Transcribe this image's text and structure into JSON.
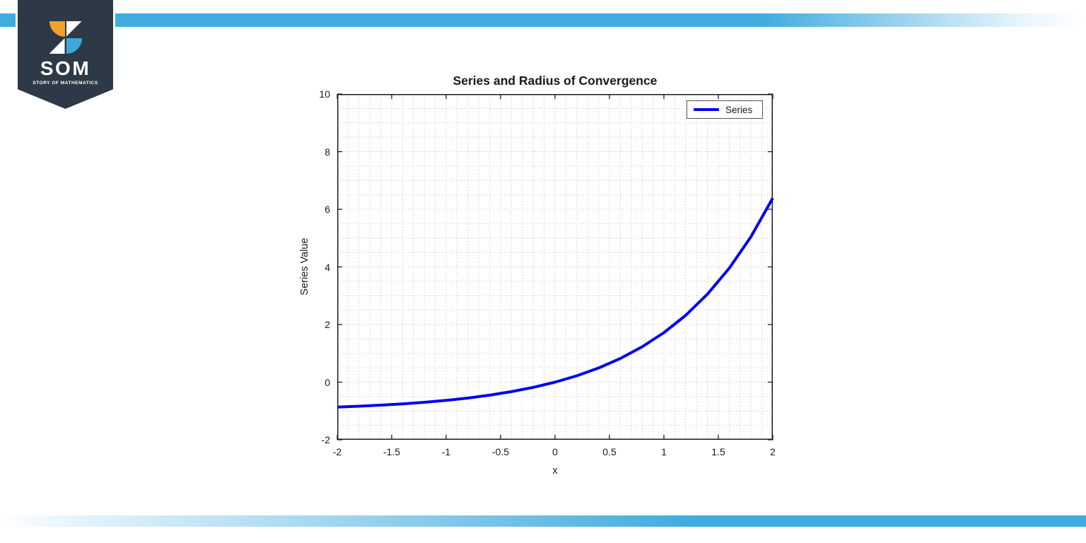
{
  "branding": {
    "logo_text": "SOM",
    "logo_tagline": "STORY OF MATHEMATICS",
    "banner_color": "#2d3946",
    "accent_bar_color": "#3fabdf",
    "icon_orange": "#f2a227",
    "icon_blue": "#3ea8dc"
  },
  "chart_data": {
    "type": "line",
    "title": "Series and Radius of Convergence",
    "xlabel": "x",
    "ylabel": "Series Value",
    "xlim": [
      -2,
      2
    ],
    "ylim": [
      -2,
      10
    ],
    "x_ticks": [
      -2,
      -1.5,
      -1,
      -0.5,
      0,
      0.5,
      1,
      1.5,
      2
    ],
    "y_ticks": [
      -2,
      0,
      2,
      4,
      6,
      8,
      10
    ],
    "x_tick_labels": [
      "-2",
      "-1.5",
      "-1",
      "-0.5",
      "0",
      "0.5",
      "1",
      "1.5",
      "2"
    ],
    "y_tick_labels": [
      "-2",
      "0",
      "2",
      "4",
      "6",
      "8",
      "10"
    ],
    "grid": "minor-dotted",
    "grid_color": "#bdbdbd",
    "minor_step_x": 0.1,
    "minor_step_y": 0.5,
    "axis_color": "#1a1a1a",
    "legend": {
      "position": "top-right",
      "entries": [
        {
          "label": "Series",
          "color": "#0000ee"
        }
      ]
    },
    "series": [
      {
        "name": "Series",
        "color": "#0000ee",
        "line_width": 4,
        "x": [
          -2,
          -1.8,
          -1.6,
          -1.4,
          -1.2,
          -1.0,
          -0.8,
          -0.6,
          -0.4,
          -0.2,
          0,
          0.2,
          0.4,
          0.6,
          0.8,
          1.0,
          1.2,
          1.4,
          1.6,
          1.8,
          2.0
        ],
        "y": [
          -0.865,
          -0.835,
          -0.798,
          -0.753,
          -0.699,
          -0.632,
          -0.551,
          -0.451,
          -0.33,
          -0.181,
          0,
          0.221,
          0.492,
          0.822,
          1.226,
          1.718,
          2.32,
          3.055,
          3.953,
          5.05,
          6.389
        ]
      }
    ]
  }
}
